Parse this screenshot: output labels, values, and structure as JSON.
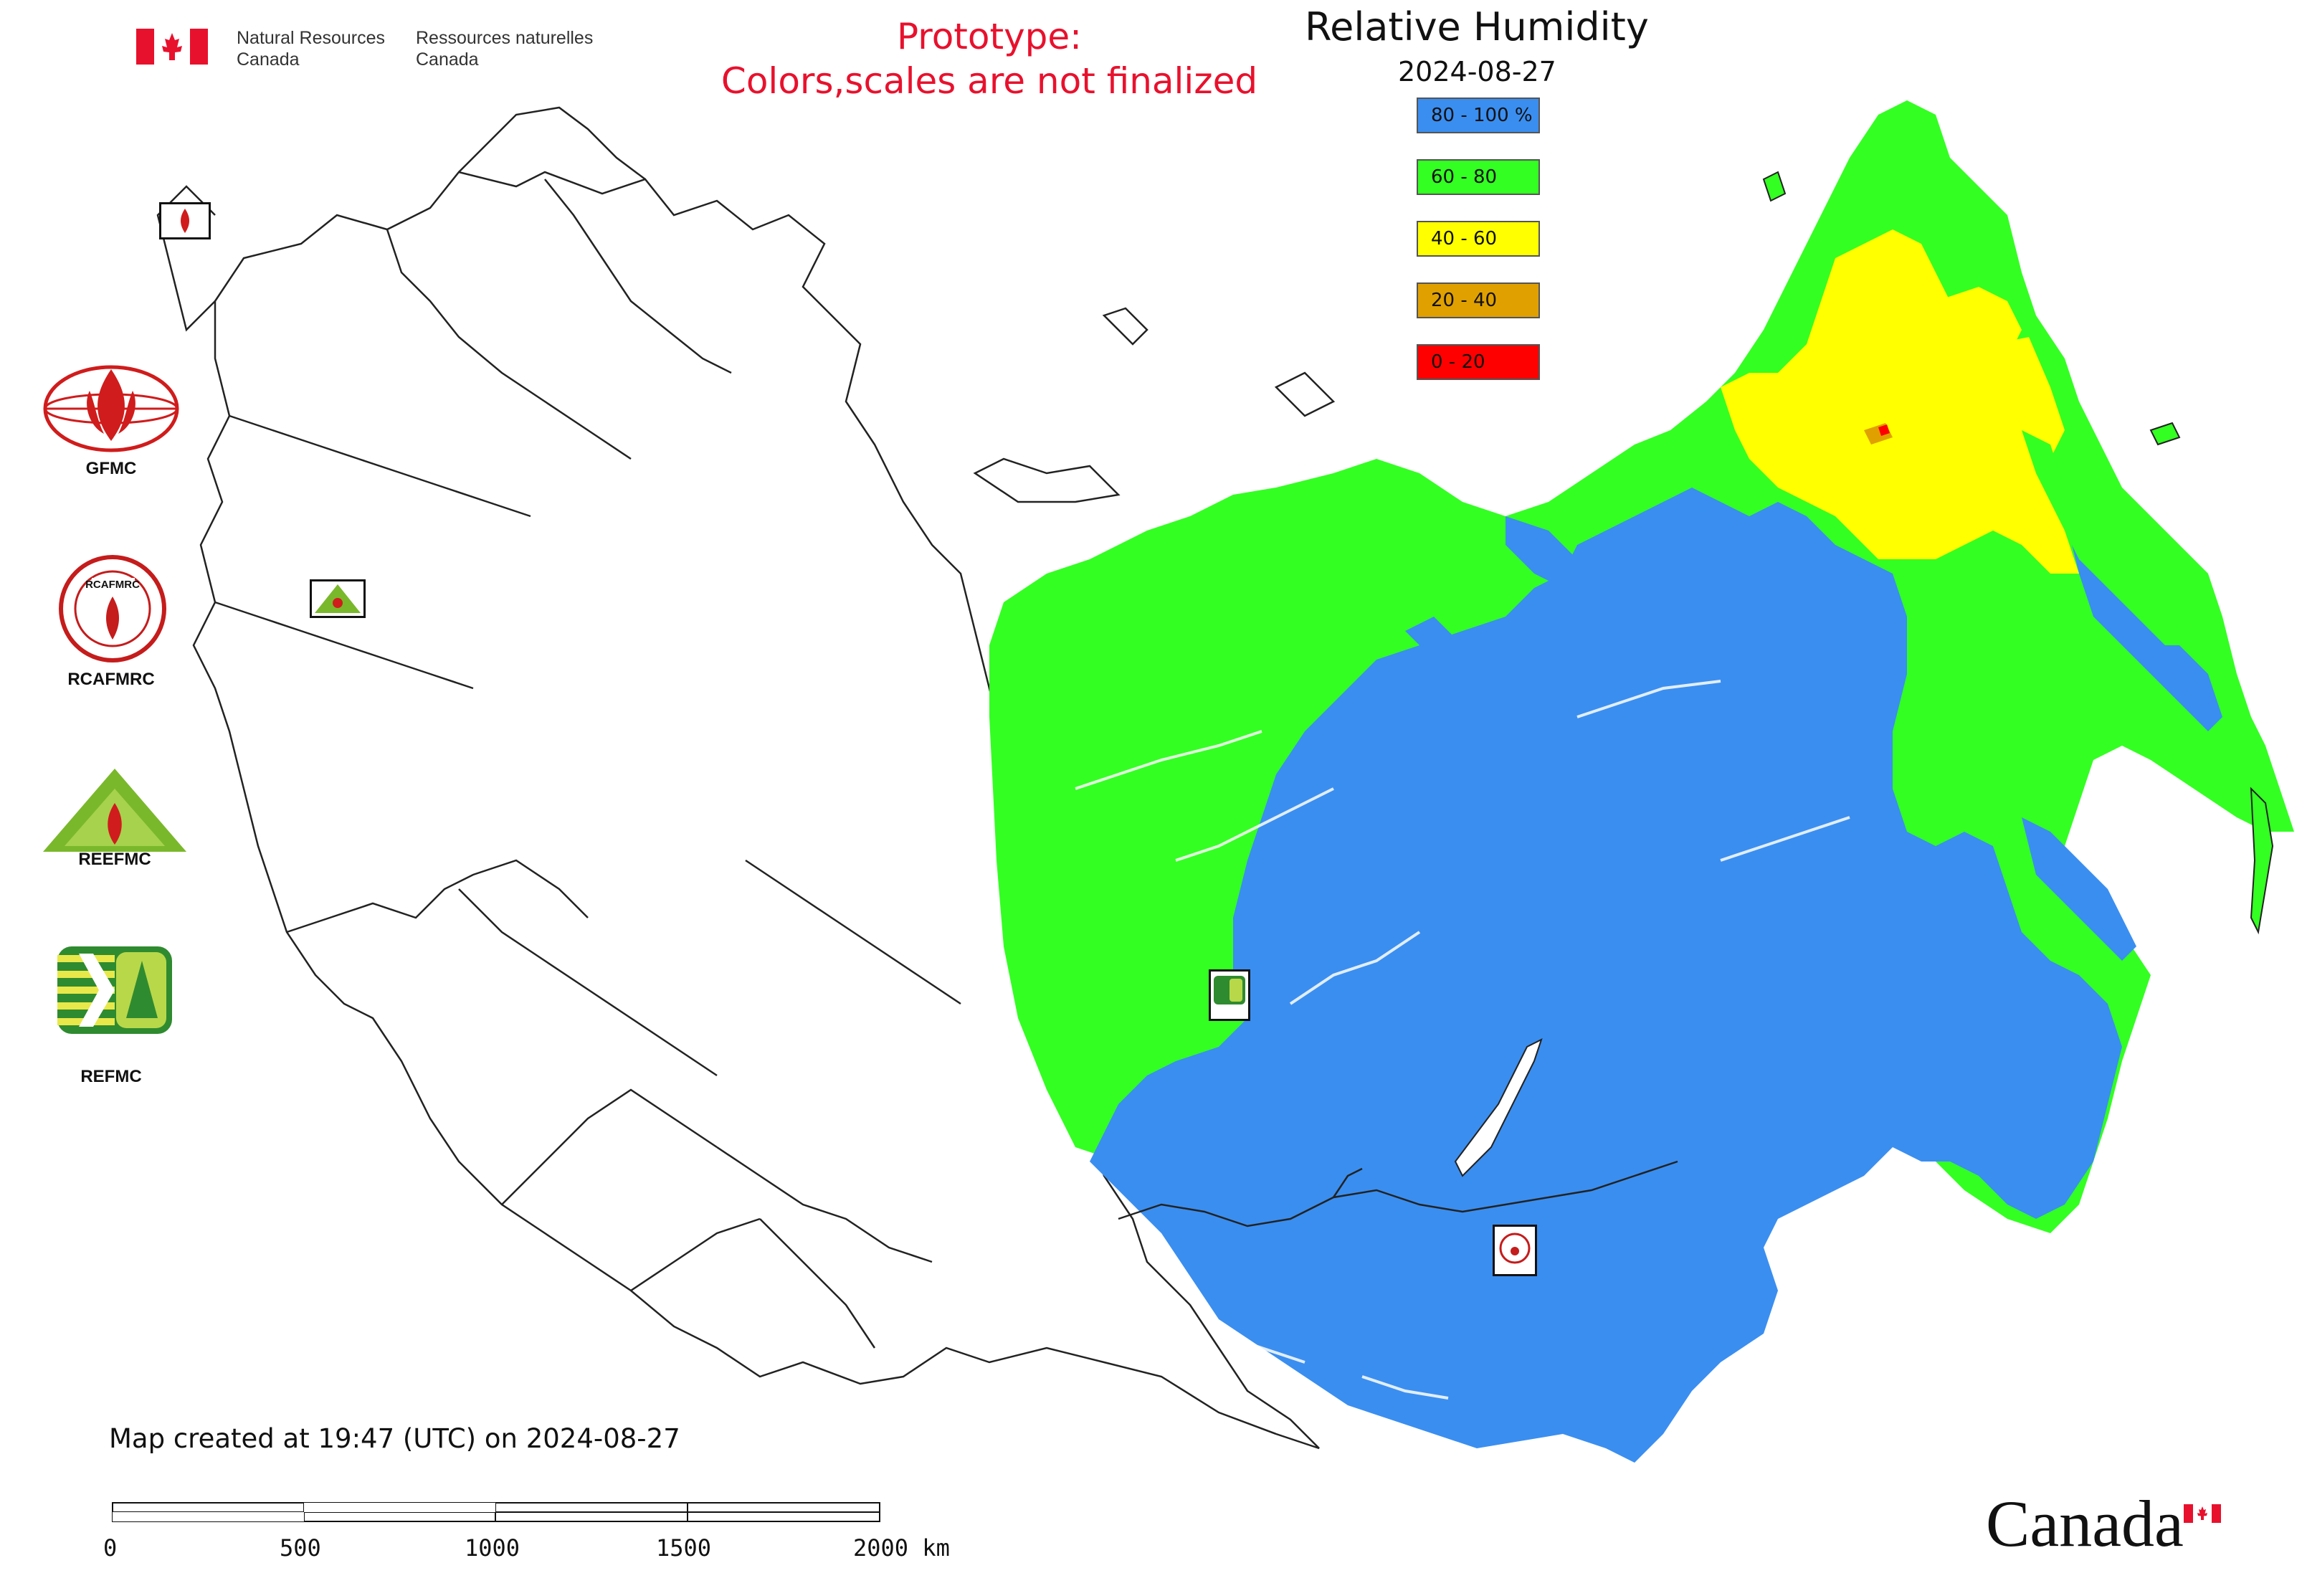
{
  "header": {
    "dept_en_line1": "Natural Resources",
    "dept_en_line2": "Canada",
    "dept_fr_line1": "Ressources naturelles",
    "dept_fr_line2": "Canada",
    "prototype_line1": "Prototype:",
    "prototype_line2": "Colors,scales are not finalized"
  },
  "map_title": {
    "title": "Relative Humidity",
    "date": "2024-08-27"
  },
  "legend": {
    "items": [
      {
        "label": "80 - 100 %",
        "color": "#3a8ef0"
      },
      {
        "label": "60 - 80",
        "color": "#33ff22"
      },
      {
        "label": "40 - 60",
        "color": "#ffff00"
      },
      {
        "label": "20 - 40",
        "color": "#e0a000"
      },
      {
        "label": "0 - 20",
        "color": "#ff0000"
      }
    ]
  },
  "organizations": [
    {
      "label": "GFMC",
      "icon": "gfmc-logo-icon"
    },
    {
      "label": "RCAFMRC",
      "icon": "rcafmrc-logo-icon"
    },
    {
      "label": "",
      "icon": "reefmc-logo-icon",
      "wordmark": "REEFMC"
    },
    {
      "label": "REFMC",
      "icon": "refmc-logo-icon"
    }
  ],
  "footer": {
    "created": "Map created at 19:47 (UTC) on 2024-08-27",
    "scale_labels": [
      "0",
      "500",
      "1000",
      "1500",
      "2000 km"
    ],
    "wordmark": "Canada"
  },
  "colors": {
    "humid_high": "#3a8ef0",
    "humid_mid": "#33ff22",
    "humid_low": "#ffff00",
    "humid_vlow": "#e0a000",
    "humid_min": "#ff0000",
    "brand_red": "#e8112d"
  }
}
